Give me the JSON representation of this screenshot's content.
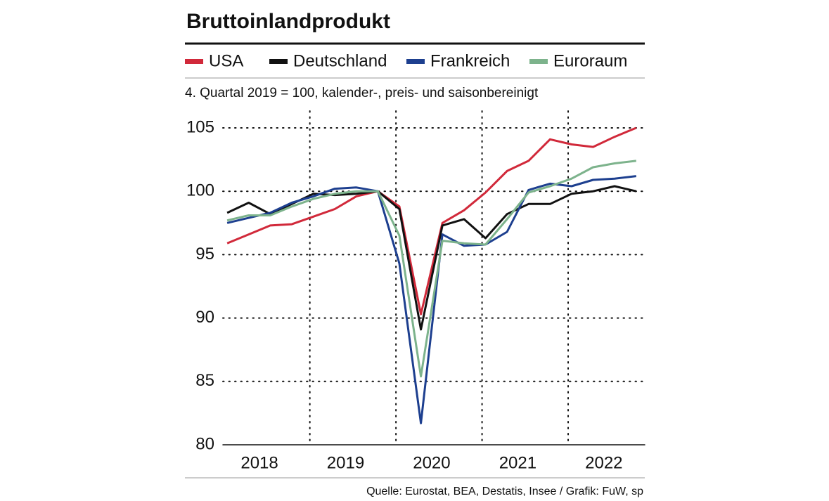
{
  "chart_data": {
    "type": "line",
    "title": "Bruttoinlandprodukt",
    "subtitle": "4. Quartal 2019 = 100, kalender-, preis- und saisonbereinigt",
    "source": "Quelle: Eurostat, BEA, Destatis, Insee / Grafik: FuW, sp",
    "x": [
      2018,
      2018.25,
      2018.5,
      2018.75,
      2019,
      2019.25,
      2019.5,
      2019.75,
      2020,
      2020.25,
      2020.5,
      2020.75,
      2021,
      2021.25,
      2021.5,
      2021.75,
      2022,
      2022.25,
      2022.5,
      2022.75
    ],
    "xlim": [
      2017.95,
      2022.85
    ],
    "xticks": [
      {
        "value": 2018.375,
        "label": "2018"
      },
      {
        "value": 2019.375,
        "label": "2019"
      },
      {
        "value": 2020.375,
        "label": "2020"
      },
      {
        "value": 2021.375,
        "label": "2021"
      },
      {
        "value": 2022.375,
        "label": "2022"
      }
    ],
    "xgrid": [
      2018.96,
      2019.96,
      2020.96,
      2021.96
    ],
    "ylim": [
      80,
      106
    ],
    "yticks": [
      80,
      85,
      90,
      95,
      100,
      105
    ],
    "grid": true,
    "series": [
      {
        "name": "USA",
        "color": "#d1293a",
        "values": [
          95.9,
          96.6,
          97.3,
          97.4,
          98.0,
          98.6,
          99.6,
          100,
          98.8,
          90.3,
          97.5,
          98.5,
          99.9,
          101.6,
          102.4,
          104.1,
          103.7,
          103.5,
          104.3,
          105.0
        ]
      },
      {
        "name": "Deutschland",
        "color": "#111111",
        "values": [
          98.3,
          99.1,
          98.2,
          99.0,
          99.8,
          99.7,
          99.8,
          100,
          98.6,
          89.1,
          97.3,
          97.8,
          96.3,
          98.2,
          99.0,
          99.0,
          99.8,
          100.0,
          100.4,
          100.0
        ]
      },
      {
        "name": "Frankreich",
        "color": "#1d3f8f",
        "values": [
          97.5,
          97.9,
          98.3,
          99.1,
          99.6,
          100.2,
          100.3,
          100,
          94.3,
          81.7,
          96.6,
          95.7,
          95.8,
          96.8,
          100.1,
          100.6,
          100.4,
          100.9,
          101.0,
          101.2
        ]
      },
      {
        "name": "Euroraum",
        "color": "#7db38c",
        "values": [
          97.7,
          98.1,
          98.1,
          98.8,
          99.4,
          99.8,
          100.0,
          100,
          96.5,
          85.4,
          96.1,
          95.9,
          95.8,
          97.8,
          99.9,
          100.4,
          101.0,
          101.9,
          102.2,
          102.4
        ]
      }
    ]
  }
}
